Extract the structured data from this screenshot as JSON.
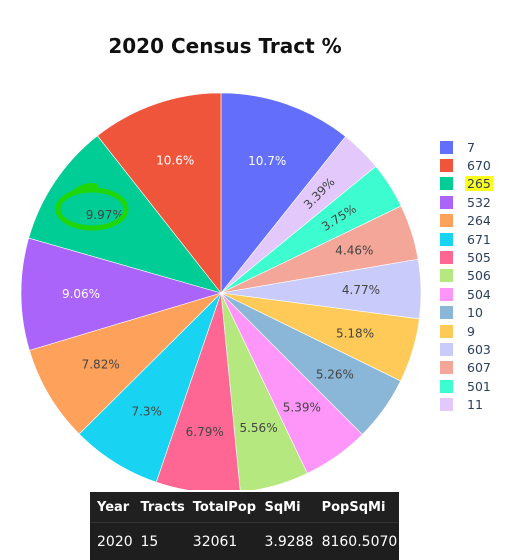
{
  "chart_data": {
    "type": "pie",
    "title": "2020 Census Tract %",
    "slices": [
      {
        "label": "7",
        "value": 10.7,
        "text": "10.7%",
        "color": "#636efa"
      },
      {
        "label": "11",
        "value": 3.39,
        "text": "3.39%",
        "color": "#e2c8fb"
      },
      {
        "label": "501",
        "value": 3.75,
        "text": "3.75%",
        "color": "#3dfdd0"
      },
      {
        "label": "607",
        "value": 4.46,
        "text": "4.46%",
        "color": "#f4a698"
      },
      {
        "label": "603",
        "value": 4.77,
        "text": "4.77%",
        "color": "#c9cbfa"
      },
      {
        "label": "9",
        "value": 5.18,
        "text": "5.18%",
        "color": "#ffca57"
      },
      {
        "label": "10",
        "value": 5.26,
        "text": "5.26%",
        "color": "#8ab6d8"
      },
      {
        "label": "504",
        "value": 5.39,
        "text": "5.39%",
        "color": "#fe96fa"
      },
      {
        "label": "506",
        "value": 5.56,
        "text": "5.56%",
        "color": "#b6e880"
      },
      {
        "label": "505",
        "value": 6.79,
        "text": "6.79%",
        "color": "#fe6693"
      },
      {
        "label": "671",
        "value": 7.3,
        "text": "7.3%",
        "color": "#18d3f2"
      },
      {
        "label": "264",
        "value": 7.82,
        "text": "7.82%",
        "color": "#fea15b"
      },
      {
        "label": "532",
        "value": 9.06,
        "text": "9.06%",
        "color": "#ab64f9"
      },
      {
        "label": "265",
        "value": 9.97,
        "text": "9.97%",
        "color": "#00cc96"
      },
      {
        "label": "670",
        "value": 10.6,
        "text": "10.6%",
        "color": "#ef553b"
      }
    ],
    "legend": [
      "7",
      "670",
      "265",
      "532",
      "264",
      "671",
      "505",
      "506",
      "504",
      "10",
      "9",
      "603",
      "607",
      "501",
      "11"
    ],
    "legend_position": "right",
    "highlighted_legend": "265",
    "highlighted_slice": "265"
  },
  "table": {
    "headers": [
      "Year",
      "Tracts",
      "TotalPop",
      "SqMi",
      "PopSqMi"
    ],
    "rows": [
      [
        "2020",
        "15",
        "32061",
        "3.9288",
        "8160.5070"
      ]
    ]
  }
}
